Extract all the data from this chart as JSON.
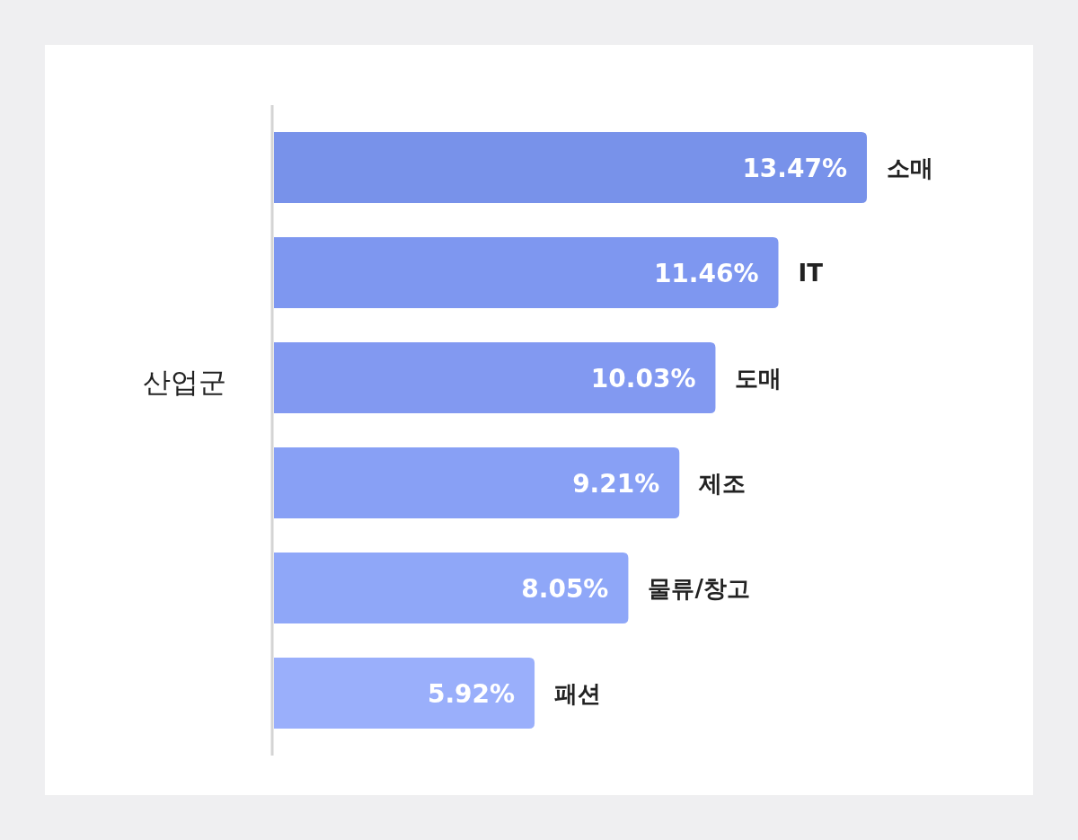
{
  "chart_data": {
    "type": "bar",
    "orientation": "horizontal",
    "ylabel": "산업군",
    "categories": [
      "소매",
      "IT",
      "도매",
      "제조",
      "물류/창고",
      "패션"
    ],
    "values": [
      13.47,
      11.46,
      10.03,
      9.21,
      8.05,
      5.92
    ],
    "value_labels": [
      "13.47%",
      "11.46%",
      "10.03%",
      "9.21%",
      "8.05%",
      "5.92%"
    ],
    "colors": [
      "#7892ea",
      "#7e97f0",
      "#8299f1",
      "#88a0f5",
      "#8fa7f8",
      "#9aaffb"
    ]
  }
}
